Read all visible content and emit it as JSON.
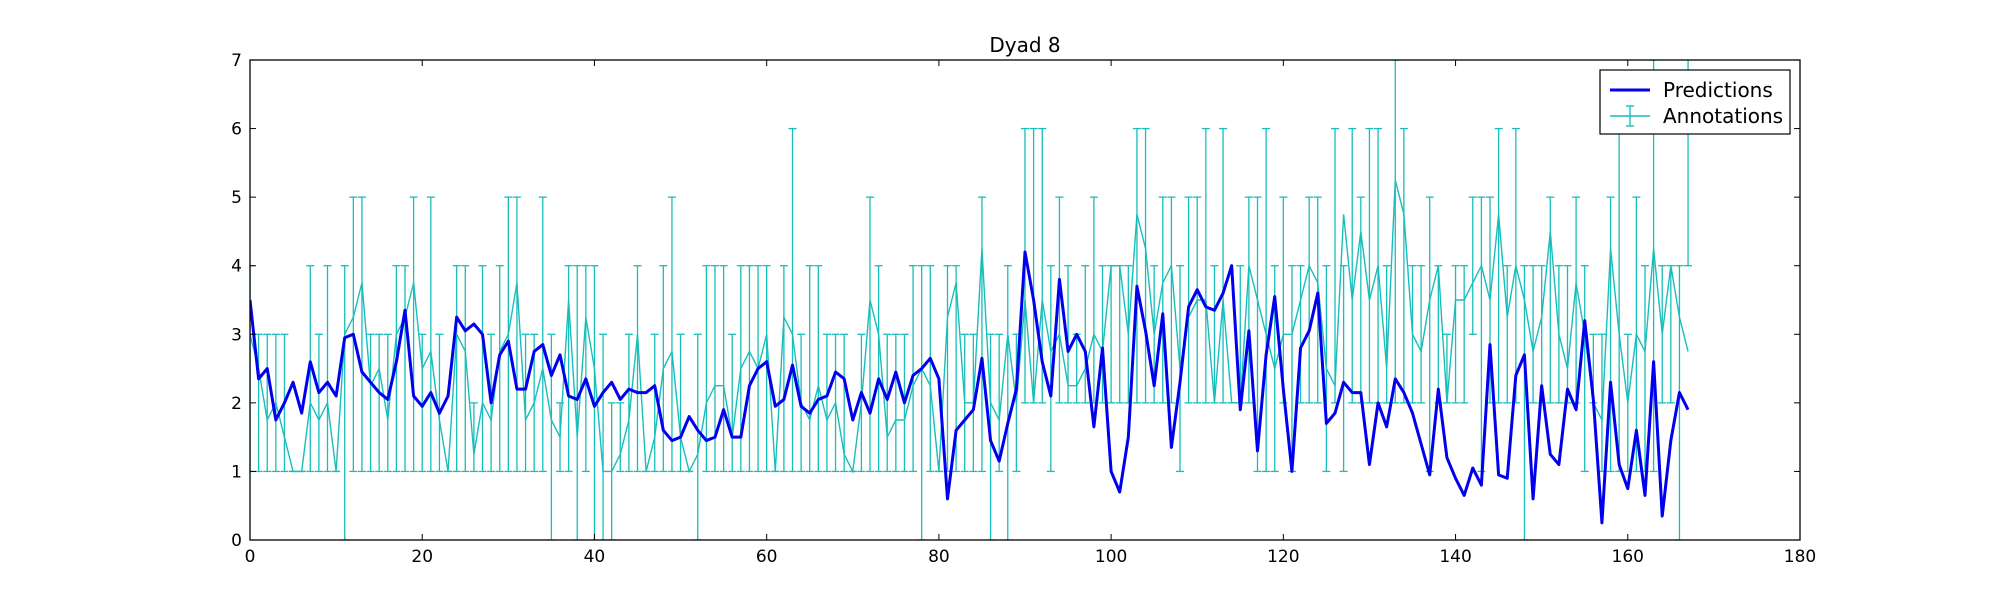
{
  "chart_data": {
    "type": "line",
    "title": "Dyad 8",
    "xlabel": "",
    "ylabel": "",
    "xlim": [
      0,
      180
    ],
    "ylim": [
      0,
      7
    ],
    "xticks": [
      0,
      20,
      40,
      60,
      80,
      100,
      120,
      140,
      160,
      180
    ],
    "yticks": [
      0,
      1,
      2,
      3,
      4,
      5,
      6,
      7
    ],
    "grid": false,
    "legend_position": "top-right",
    "series": [
      {
        "name": "Predictions",
        "color": "#0000ee",
        "values": [
          3.5,
          2.35,
          2.5,
          1.75,
          2.0,
          2.3,
          1.85,
          2.6,
          2.15,
          2.3,
          2.1,
          2.95,
          3.0,
          2.45,
          2.3,
          2.15,
          2.05,
          2.6,
          3.35,
          2.1,
          1.95,
          2.15,
          1.85,
          2.1,
          3.25,
          3.05,
          3.15,
          3.0,
          2.0,
          2.7,
          2.9,
          2.2,
          2.2,
          2.75,
          2.85,
          2.4,
          2.7,
          2.1,
          2.05,
          2.35,
          1.95,
          2.15,
          2.3,
          2.05,
          2.2,
          2.15,
          2.15,
          2.25,
          1.6,
          1.45,
          1.5,
          1.8,
          1.6,
          1.45,
          1.5,
          1.9,
          1.5,
          1.5,
          2.25,
          2.5,
          2.6,
          1.95,
          2.05,
          2.55,
          1.95,
          1.85,
          2.05,
          2.1,
          2.45,
          2.35,
          1.75,
          2.15,
          1.85,
          2.35,
          2.05,
          2.45,
          2.0,
          2.4,
          2.5,
          2.65,
          2.35,
          0.6,
          1.6,
          1.75,
          1.9,
          2.65,
          1.45,
          1.15,
          1.7,
          2.2,
          4.2,
          3.5,
          2.6,
          2.1,
          3.8,
          2.75,
          3.0,
          2.75,
          1.65,
          2.8,
          1.0,
          0.7,
          1.5,
          3.7,
          3.05,
          2.25,
          3.3,
          1.35,
          2.3,
          3.4,
          3.65,
          3.4,
          3.35,
          3.6,
          4.0,
          1.9,
          3.05,
          1.3,
          2.7,
          3.55,
          2.2,
          1.0,
          2.8,
          3.05,
          3.6,
          1.7,
          1.85,
          2.3,
          2.15,
          2.15,
          1.1,
          2.0,
          1.65,
          2.35,
          2.15,
          1.85,
          1.4,
          0.95,
          2.2,
          1.2,
          0.9,
          0.65,
          1.05,
          0.8,
          2.85,
          0.95,
          0.9,
          2.4,
          2.7,
          0.6,
          2.25,
          1.25,
          1.1,
          2.2,
          1.9,
          3.2,
          2.05,
          0.25,
          2.3,
          1.1,
          0.75,
          1.6,
          0.65,
          2.6,
          0.35,
          1.45,
          2.15,
          1.9
        ]
      },
      {
        "name": "Annotations",
        "color": "#17bebb",
        "values": [
          3.0,
          2.5,
          1.75,
          2.0,
          1.5,
          1.0,
          1.0,
          2.0,
          1.75,
          2.0,
          1.0,
          3.0,
          3.25,
          3.75,
          2.25,
          2.5,
          1.75,
          3.0,
          3.25,
          3.75,
          2.5,
          2.75,
          1.75,
          1.0,
          3.0,
          2.75,
          1.25,
          2.0,
          1.75,
          2.75,
          3.0,
          3.75,
          1.75,
          2.0,
          2.5,
          1.75,
          1.5,
          3.5,
          1.5,
          3.25,
          2.5,
          1.0,
          1.0,
          1.25,
          1.75,
          3.0,
          1.0,
          1.5,
          2.5,
          2.75,
          1.5,
          1.0,
          1.25,
          2.0,
          2.25,
          2.25,
          1.5,
          2.5,
          2.75,
          2.5,
          3.0,
          1.0,
          3.25,
          3.0,
          2.0,
          1.75,
          2.25,
          1.75,
          2.0,
          1.25,
          1.0,
          2.0,
          3.5,
          3.0,
          1.5,
          1.75,
          1.75,
          2.25,
          2.5,
          2.25,
          1.0,
          3.25,
          3.75,
          2.0,
          2.0,
          4.25,
          2.0,
          1.75,
          3.0,
          2.0,
          3.5,
          2.0,
          3.5,
          2.75,
          3.0,
          2.25,
          2.25,
          2.5,
          3.0,
          2.75,
          4.0,
          4.0,
          3.0,
          4.75,
          4.25,
          3.0,
          3.75,
          4.0,
          2.5,
          3.25,
          3.5,
          3.5,
          2.0,
          3.5,
          2.0,
          2.0,
          4.0,
          3.5,
          3.0,
          2.5,
          3.0,
          3.0,
          3.5,
          4.0,
          3.75,
          2.5,
          2.25,
          4.75,
          3.5,
          4.5,
          3.5,
          4.0,
          2.5,
          5.25,
          4.75,
          3.0,
          2.75,
          3.5,
          4.0,
          2.0,
          3.5,
          3.5,
          3.75,
          4.0,
          3.5,
          4.75,
          3.25,
          4.0,
          3.5,
          2.75,
          3.25,
          4.5,
          3.0,
          2.5,
          3.75,
          3.0,
          2.0,
          1.75,
          4.25,
          3.0,
          2.0,
          3.0,
          2.75,
          4.25,
          3.0,
          4.0,
          3.25,
          2.75
        ],
        "error_low": [
          1.0,
          1.0,
          1.0,
          1.0,
          1.0,
          1.0,
          1.0,
          1.0,
          1.0,
          1.0,
          1.0,
          0.0,
          1.0,
          1.0,
          1.0,
          1.0,
          1.0,
          1.0,
          1.0,
          1.0,
          1.0,
          1.0,
          1.0,
          1.0,
          1.0,
          1.0,
          1.0,
          1.0,
          1.0,
          1.0,
          1.0,
          1.0,
          1.0,
          1.0,
          1.0,
          0.0,
          1.0,
          1.0,
          0.0,
          1.0,
          0.0,
          0.0,
          0.0,
          1.0,
          1.0,
          1.0,
          1.0,
          1.0,
          1.0,
          1.0,
          1.0,
          1.0,
          0.0,
          1.0,
          1.0,
          1.0,
          1.0,
          1.0,
          1.0,
          1.0,
          1.0,
          1.0,
          1.0,
          1.0,
          1.0,
          1.0,
          1.0,
          1.0,
          1.0,
          1.0,
          1.0,
          1.0,
          1.0,
          1.0,
          1.0,
          1.0,
          1.0,
          1.0,
          0.0,
          1.0,
          1.0,
          1.0,
          1.0,
          1.0,
          1.0,
          1.0,
          0.0,
          1.0,
          0.0,
          1.0,
          2.0,
          2.0,
          2.0,
          1.0,
          2.0,
          2.0,
          2.0,
          2.0,
          2.0,
          2.0,
          2.0,
          2.0,
          2.0,
          2.0,
          2.0,
          2.0,
          2.0,
          2.0,
          1.0,
          2.0,
          2.0,
          2.0,
          2.0,
          2.0,
          2.0,
          2.0,
          2.0,
          1.0,
          1.0,
          1.0,
          2.0,
          1.0,
          2.0,
          2.0,
          2.0,
          1.0,
          2.0,
          1.0,
          2.0,
          2.0,
          2.0,
          2.0,
          2.0,
          2.0,
          2.0,
          2.0,
          2.0,
          1.0,
          2.0,
          2.0,
          2.0,
          2.0,
          3.0,
          1.0,
          2.0,
          2.0,
          2.0,
          2.0,
          0.0,
          2.0,
          2.0,
          2.0,
          2.0,
          2.0,
          2.0,
          1.0,
          2.0,
          1.0,
          1.0,
          1.0,
          1.0,
          1.0,
          1.0,
          1.0,
          2.0,
          2.0,
          0.0
        ],
        "error_high": [
          4.0,
          3.0,
          3.0,
          3.0,
          3.0,
          1.0,
          1.0,
          4.0,
          3.0,
          4.0,
          1.0,
          4.0,
          5.0,
          5.0,
          3.0,
          3.0,
          3.0,
          4.0,
          4.0,
          5.0,
          3.0,
          5.0,
          3.0,
          1.0,
          4.0,
          4.0,
          2.0,
          4.0,
          3.0,
          4.0,
          5.0,
          5.0,
          3.0,
          3.0,
          5.0,
          3.0,
          2.0,
          4.0,
          4.0,
          4.0,
          4.0,
          3.0,
          2.0,
          2.0,
          3.0,
          4.0,
          1.0,
          3.0,
          4.0,
          5.0,
          3.0,
          1.0,
          3.0,
          4.0,
          4.0,
          4.0,
          3.0,
          4.0,
          4.0,
          4.0,
          4.0,
          1.0,
          4.0,
          6.0,
          3.0,
          4.0,
          4.0,
          3.0,
          3.0,
          3.0,
          1.0,
          3.0,
          5.0,
          4.0,
          3.0,
          3.0,
          3.0,
          4.0,
          4.0,
          4.0,
          1.0,
          4.0,
          4.0,
          3.0,
          3.0,
          5.0,
          3.0,
          3.0,
          4.0,
          3.0,
          6.0,
          6.0,
          6.0,
          4.0,
          5.0,
          4.0,
          3.0,
          4.0,
          5.0,
          4.0,
          4.0,
          4.0,
          4.0,
          6.0,
          6.0,
          4.0,
          5.0,
          5.0,
          4.0,
          5.0,
          5.0,
          6.0,
          4.0,
          6.0,
          2.0,
          4.0,
          5.0,
          5.0,
          6.0,
          4.0,
          5.0,
          4.0,
          4.0,
          5.0,
          5.0,
          4.0,
          6.0,
          4.0,
          6.0,
          5.0,
          6.0,
          6.0,
          4.0,
          7.0,
          6.0,
          4.0,
          4.0,
          5.0,
          4.0,
          3.0,
          4.0,
          4.0,
          5.0,
          5.0,
          5.0,
          6.0,
          4.0,
          6.0,
          4.0,
          4.0,
          4.0,
          5.0,
          4.0,
          4.0,
          5.0,
          4.0,
          3.0,
          3.0,
          5.0,
          6.0,
          3.0,
          5.0,
          4.0,
          7.0,
          4.0,
          4.0,
          4.0,
          4.0
        ]
      }
    ]
  }
}
